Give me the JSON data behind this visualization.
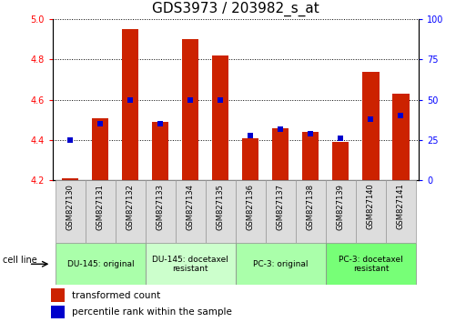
{
  "title": "GDS3973 / 203982_s_at",
  "samples": [
    "GSM827130",
    "GSM827131",
    "GSM827132",
    "GSM827133",
    "GSM827134",
    "GSM827135",
    "GSM827136",
    "GSM827137",
    "GSM827138",
    "GSM827139",
    "GSM827140",
    "GSM827141"
  ],
  "transformed_count": [
    4.21,
    4.51,
    4.95,
    4.49,
    4.9,
    4.82,
    4.41,
    4.46,
    4.44,
    4.39,
    4.74,
    4.63
  ],
  "percentile_rank": [
    25,
    35,
    50,
    35,
    50,
    50,
    28,
    32,
    29,
    26,
    38,
    40
  ],
  "ylim_left": [
    4.2,
    5.0
  ],
  "ylim_right": [
    0,
    100
  ],
  "yticks_left": [
    4.2,
    4.4,
    4.6,
    4.8,
    5.0
  ],
  "yticks_right": [
    0,
    25,
    50,
    75,
    100
  ],
  "bar_color": "#cc2200",
  "dot_color": "#0000cc",
  "grid_color": "#000000",
  "cell_line_groups": [
    {
      "label": "DU-145: original",
      "start": 0,
      "end": 2
    },
    {
      "label": "DU-145: docetaxel\nresistant",
      "start": 3,
      "end": 5
    },
    {
      "label": "PC-3: original",
      "start": 6,
      "end": 8
    },
    {
      "label": "PC-3: docetaxel\nresistant",
      "start": 9,
      "end": 11
    }
  ],
  "group_colors": [
    "#aaffaa",
    "#ccffcc",
    "#aaffaa",
    "#77ff77"
  ],
  "bar_width": 0.55,
  "bar_bottom": 4.2,
  "title_fontsize": 11,
  "tick_fontsize": 7,
  "cell_label_fontsize": 6.5,
  "legend_fontsize": 7.5
}
